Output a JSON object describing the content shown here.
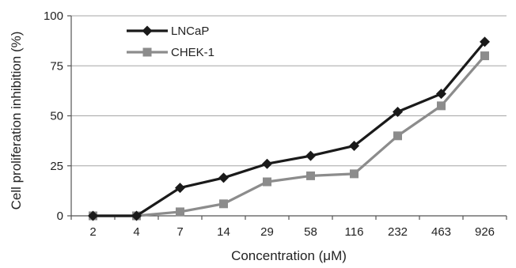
{
  "chart_data": {
    "type": "line",
    "title": "",
    "xlabel": "Concentration (μM)",
    "ylabel": "Cell proliferation inhibition (%)",
    "categories": [
      "2",
      "4",
      "7",
      "14",
      "29",
      "58",
      "116",
      "232",
      "463",
      "926"
    ],
    "ylim": [
      0,
      100
    ],
    "yticks": [
      0,
      25,
      50,
      75,
      100
    ],
    "grid": true,
    "legend_position": "top-left",
    "series": [
      {
        "name": "LNCaP",
        "color": "#1a1a1a",
        "marker": "diamond",
        "values": [
          0,
          0,
          14,
          19,
          26,
          30,
          35,
          52,
          61,
          87
        ]
      },
      {
        "name": "CHEK-1",
        "color": "#8c8c8c",
        "marker": "square",
        "values": [
          0,
          0,
          2,
          6,
          17,
          20,
          21,
          40,
          55,
          80
        ]
      }
    ]
  }
}
